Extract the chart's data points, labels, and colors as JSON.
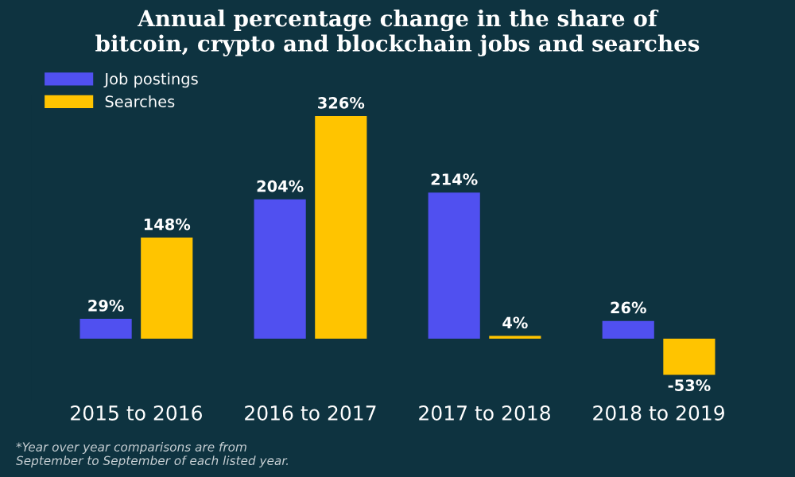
{
  "chart_data": {
    "type": "bar",
    "title": "Annual percentage change in the share of\nbitcoin, crypto and blockchain jobs and searches",
    "categories": [
      "2015 to 2016",
      "2016 to 2017",
      "2017 to 2018",
      "2018 to 2019"
    ],
    "series": [
      {
        "name": "Job postings",
        "color": "#5050f0",
        "values": [
          29,
          204,
          214,
          26
        ],
        "value_labels": [
          "29%",
          "204%",
          "214%",
          "26%"
        ]
      },
      {
        "name": "Searches",
        "color": "#ffc400",
        "values": [
          148,
          326,
          4,
          -53
        ],
        "value_labels": [
          "148%",
          "326%",
          "4%",
          "-53%"
        ]
      }
    ],
    "legend": "top left",
    "annotations": [
      "*Year over year comparisons are from\nSeptember to September of each listed year."
    ]
  }
}
